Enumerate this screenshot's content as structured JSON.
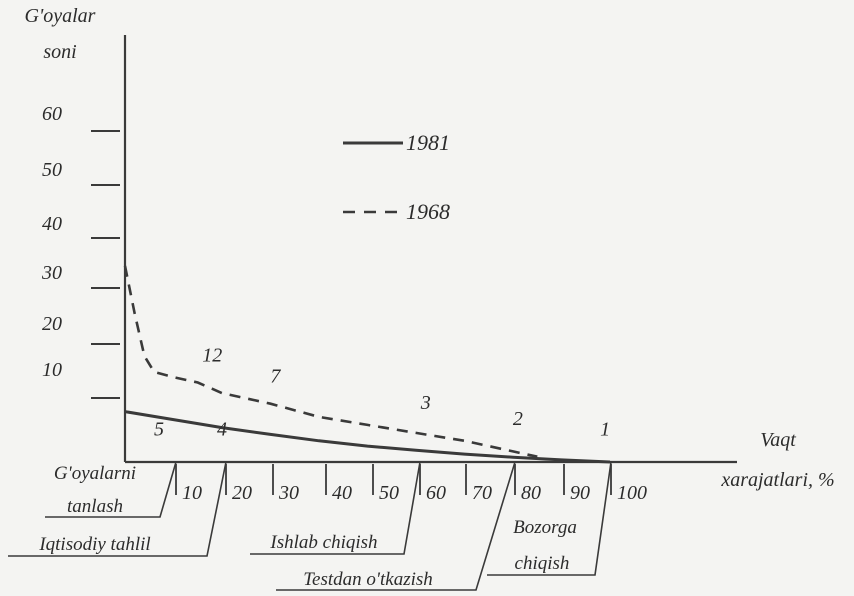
{
  "chart_data": {
    "type": "line",
    "ylabel": [
      "G'oyalar",
      "soni"
    ],
    "xlabel": [
      "Vaqt",
      "xarajatlari, %"
    ],
    "y_ticks": [
      "10",
      "20",
      "30",
      "40",
      "50",
      "60"
    ],
    "x_ticks": [
      "10",
      "20",
      "30",
      "40",
      "50",
      "60",
      "70",
      "80",
      "90",
      "100"
    ],
    "xlim": [
      0,
      100
    ],
    "legend_placement": "top-center",
    "series": [
      {
        "name": "1981",
        "style": "solid",
        "color": "#3a3a3a",
        "x": [
          0,
          10,
          20,
          30,
          40,
          50,
          60,
          70,
          80,
          90,
          100
        ],
        "y": [
          9.5,
          8,
          6.5,
          5.2,
          4,
          3,
          2.2,
          1.5,
          0.9,
          0.4,
          0
        ]
      },
      {
        "name": "1968",
        "style": "dashed",
        "color": "#3a3a3a",
        "x": [
          0,
          2,
          4,
          6,
          10,
          15,
          20,
          30,
          40,
          50,
          60,
          70,
          80,
          85
        ],
        "y": [
          37,
          28,
          20,
          17,
          16,
          15,
          13,
          11,
          8.5,
          7,
          5.5,
          4,
          2,
          1
        ]
      }
    ],
    "annotations": [
      {
        "text": "12",
        "x": 18,
        "y": 19
      },
      {
        "text": "7",
        "x": 31,
        "y": 15
      },
      {
        "text": "3",
        "x": 62,
        "y": 10
      },
      {
        "text": "2",
        "x": 81,
        "y": 7
      },
      {
        "text": "1",
        "x": 99,
        "y": 5
      },
      {
        "text": "5",
        "x": 7,
        "y": 5
      },
      {
        "text": "4",
        "x": 20,
        "y": 5
      }
    ],
    "stages": [
      {
        "lines": [
          "G'oyalarni",
          "tanlash"
        ],
        "end": 10
      },
      {
        "lines": [
          "Iqtisodiy tahlil"
        ],
        "end": 20
      },
      {
        "lines": [
          "Ishlab chiqish"
        ],
        "end": 60
      },
      {
        "lines": [
          "Testdan o'tkazish"
        ],
        "end": 80
      },
      {
        "lines": [
          "Bozorga",
          "chiqish"
        ],
        "end": 100
      }
    ]
  }
}
